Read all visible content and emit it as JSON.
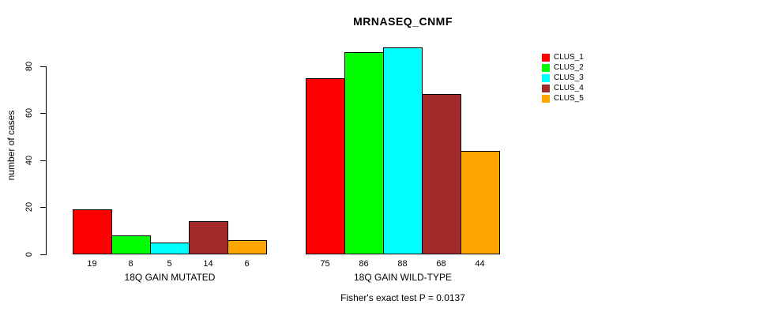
{
  "title": "MRNASEQ_CNMF",
  "footer": "Fisher's exact test P = 0.0137",
  "chart_data": {
    "type": "bar",
    "title": "MRNASEQ_CNMF",
    "ylabel": "number of cases",
    "xlabel": "",
    "yticks": [
      0,
      20,
      40,
      60,
      80
    ],
    "ylim": [
      0,
      88
    ],
    "grid": false,
    "legend_position": "right",
    "bar_border_color": "#000000",
    "annotation": "Fisher's exact test P = 0.0137",
    "categories": [
      "18Q GAIN MUTATED",
      "18Q GAIN WILD-TYPE"
    ],
    "series": [
      {
        "name": "CLUS_1",
        "color": "#FF0000",
        "values": [
          19,
          75
        ]
      },
      {
        "name": "CLUS_2",
        "color": "#00FF00",
        "values": [
          8,
          86
        ]
      },
      {
        "name": "CLUS_3",
        "color": "#00FFFF",
        "values": [
          5,
          88
        ]
      },
      {
        "name": "CLUS_4",
        "color": "#A52A2A",
        "values": [
          14,
          68
        ]
      },
      {
        "name": "CLUS_5",
        "color": "#FFA500",
        "values": [
          6,
          44
        ]
      }
    ]
  }
}
